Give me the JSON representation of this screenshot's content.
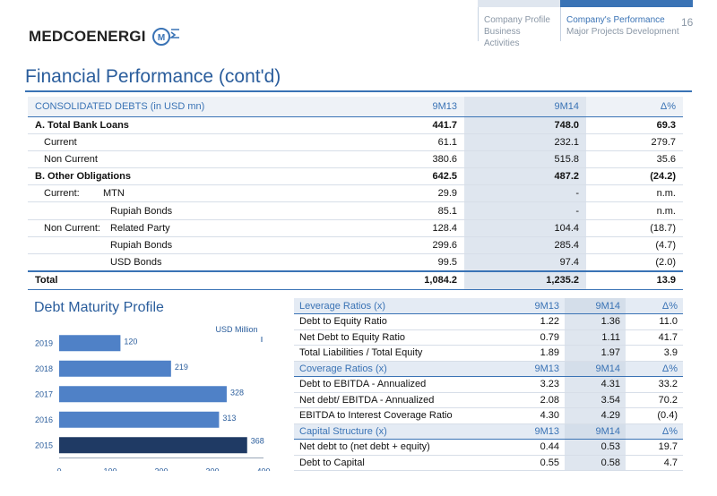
{
  "header": {
    "logo_text": "MedcoEnergi",
    "nav": [
      {
        "line1": "Company Profile",
        "line2": "Business Activities"
      },
      {
        "line1": "Company's Performance",
        "line2": "Major Projects Development"
      }
    ],
    "page_number": "16"
  },
  "title": "Financial Performance (cont'd)",
  "debts": {
    "head": {
      "label": "CONSOLIDATED DEBTS (in USD mn)",
      "a": "9M13",
      "b": "9M14",
      "c": "Δ%"
    },
    "rows": [
      {
        "label": "A. Total Bank Loans",
        "a": "441.7",
        "b": "748.0",
        "c": "69.3"
      },
      {
        "label": "Current",
        "a": "61.1",
        "b": "232.1",
        "c": "279.7"
      },
      {
        "label": "Non Current",
        "a": "380.6",
        "b": "515.8",
        "c": "35.6"
      },
      {
        "label": "B. Other Obligations",
        "a": "642.5",
        "b": "487.2",
        "c": "(24.2)"
      },
      {
        "group": "Current:",
        "label": "MTN",
        "a": "29.9",
        "b": "-",
        "c": "n.m."
      },
      {
        "label": "Rupiah Bonds",
        "a": "85.1",
        "b": "-",
        "c": "n.m."
      },
      {
        "group": "Non Current:",
        "label": "Related Party",
        "a": "128.4",
        "b": "104.4",
        "c": "(18.7)"
      },
      {
        "label": "Rupiah Bonds",
        "a": "299.6",
        "b": "285.4",
        "c": "(4.7)"
      },
      {
        "label": "USD Bonds",
        "a": "99.5",
        "b": "97.4",
        "c": "(2.0)"
      },
      {
        "label": "Total",
        "a": "1,084.2",
        "b": "1,235.2",
        "c": "13.9"
      }
    ]
  },
  "ratios": {
    "sections": [
      {
        "title": "Leverage Ratios (x)",
        "a": "9M13",
        "b": "9M14",
        "c": "Δ%",
        "rows": [
          {
            "label": "Debt to Equity Ratio",
            "a": "1.22",
            "b": "1.36",
            "c": "11.0"
          },
          {
            "label": "Net Debt to Equity Ratio",
            "a": "0.79",
            "b": "1.11",
            "c": "41.7"
          },
          {
            "label": "Total Liabilities / Total Equity",
            "a": "1.89",
            "b": "1.97",
            "c": "3.9"
          }
        ]
      },
      {
        "title": "Coverage Ratios (x)",
        "a": "9M13",
        "b": "9M14",
        "c": "Δ%",
        "rows": [
          {
            "label": "Debt to EBITDA - Annualized",
            "a": "3.23",
            "b": "4.31",
            "c": "33.2"
          },
          {
            "label": "Net debt/ EBITDA - Annualized",
            "a": "2.08",
            "b": "3.54",
            "c": "70.2"
          },
          {
            "label": "EBITDA to Interest Coverage Ratio",
            "a": "4.30",
            "b": "4.29",
            "c": "(0.4)"
          }
        ]
      },
      {
        "title": "Capital Structure (x)",
        "a": "9M13",
        "b": "9M14",
        "c": "Δ%",
        "rows": [
          {
            "label": "Net debt to (net debt + equity)",
            "a": "0.44",
            "b": "0.53",
            "c": "19.7"
          },
          {
            "label": "Debt to Capital",
            "a": "0.55",
            "b": "0.58",
            "c": "4.7"
          }
        ]
      }
    ]
  },
  "maturity_title": "Debt Maturity Profile",
  "chart_data": {
    "type": "bar",
    "orientation": "horizontal",
    "unit_label": "USD Million",
    "categories": [
      "2019",
      "2018",
      "2017",
      "2016",
      "2015"
    ],
    "values": [
      120,
      219,
      328,
      313,
      368
    ],
    "xlim": [
      0,
      400
    ],
    "xticks": [
      0,
      100,
      200,
      300,
      400
    ],
    "colors": {
      "default": "#4f81c7",
      "highlight": "#1f3a64"
    },
    "highlight_category": "2015"
  }
}
